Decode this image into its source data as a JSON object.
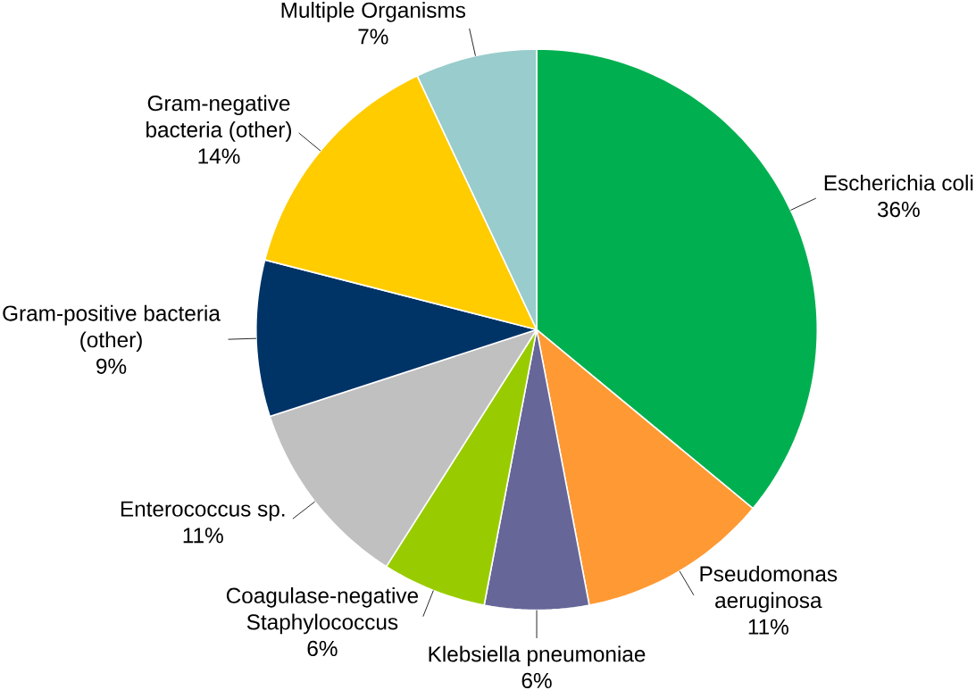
{
  "chart_data": {
    "type": "pie",
    "categories": [
      "Escherichia coli",
      "Pseudomonas aeruginosa",
      "Klebsiella pneumoniae",
      "Coagulase-negative Staphylococcus",
      "Enterococcus sp.",
      "Gram-positive bacteria (other)",
      "Gram-negative bacteria (other)",
      "Multiple Organisms"
    ],
    "values": [
      36,
      11,
      6,
      6,
      11,
      9,
      14,
      7
    ],
    "value_labels": [
      "36%",
      "11%",
      "6%",
      "6%",
      "11%",
      "9%",
      "14%",
      "7%"
    ],
    "colors": [
      "#00b050",
      "#ff9933",
      "#666699",
      "#99cc00",
      "#c0c0c0",
      "#003366",
      "#ffcc00",
      "#99cccc"
    ]
  }
}
